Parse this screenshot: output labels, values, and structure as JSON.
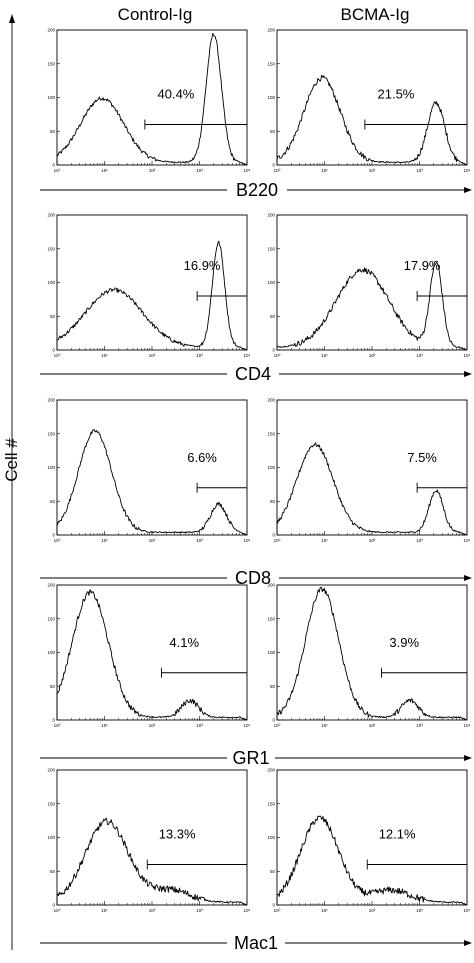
{
  "figure": {
    "y_axis_label": "Cell #",
    "columns": [
      "Control-Ig",
      "BCMA-Ig"
    ]
  },
  "chart_data": [
    {
      "type": "area",
      "marker": "B220",
      "xlim_log10": [
        0,
        4
      ],
      "ylim": [
        0,
        200
      ],
      "x_ticks": [
        "10⁰",
        "10¹",
        "10²",
        "10³",
        "10⁴"
      ],
      "y_ticks": [
        "0",
        "50",
        "100",
        "150",
        "200"
      ],
      "panels": [
        {
          "condition": "Control-Ig",
          "gate_percent": "40.4%",
          "gate_range_log10": [
            1.85,
            4.0
          ],
          "gate_level": 60,
          "peaks": [
            {
              "x": 0.95,
              "h": 95,
              "w": 0.45
            },
            {
              "x": 3.3,
              "h": 190,
              "w": 0.16
            }
          ],
          "noise": 3
        },
        {
          "condition": "BCMA-Ig",
          "gate_percent": "21.5%",
          "gate_range_log10": [
            1.85,
            4.0
          ],
          "gate_level": 60,
          "peaks": [
            {
              "x": 0.95,
              "h": 125,
              "w": 0.38
            },
            {
              "x": 3.35,
              "h": 88,
              "w": 0.18
            }
          ],
          "noise": 4
        }
      ]
    },
    {
      "type": "area",
      "marker": "CD4",
      "xlim_log10": [
        0,
        4
      ],
      "ylim": [
        0,
        200
      ],
      "x_ticks": [
        "10⁰",
        "10¹",
        "10²",
        "10³",
        "10⁴"
      ],
      "y_ticks": [
        "0",
        "50",
        "100",
        "150",
        "200"
      ],
      "panels": [
        {
          "condition": "Control-Ig",
          "gate_percent": "16.9%",
          "gate_range_log10": [
            2.95,
            4.0
          ],
          "gate_level": 80,
          "peaks": [
            {
              "x": 1.2,
              "h": 85,
              "w": 0.6
            },
            {
              "x": 3.4,
              "h": 155,
              "w": 0.13
            }
          ],
          "noise": 3
        },
        {
          "condition": "BCMA-Ig",
          "gate_percent": "17.9%",
          "gate_range_log10": [
            2.95,
            4.0
          ],
          "gate_level": 80,
          "peaks": [
            {
              "x": 1.8,
              "h": 115,
              "w": 0.55
            },
            {
              "x": 3.35,
              "h": 125,
              "w": 0.13
            }
          ],
          "noise": 4
        }
      ]
    },
    {
      "type": "area",
      "marker": "CD8",
      "xlim_log10": [
        0,
        4
      ],
      "ylim": [
        0,
        200
      ],
      "x_ticks": [
        "10⁰",
        "10¹",
        "10²",
        "10³",
        "10⁴"
      ],
      "y_ticks": [
        "0",
        "50",
        "100",
        "150",
        "200"
      ],
      "panels": [
        {
          "condition": "Control-Ig",
          "gate_percent": "6.6%",
          "gate_range_log10": [
            2.95,
            4.0
          ],
          "gate_level": 70,
          "peaks": [
            {
              "x": 0.8,
              "h": 150,
              "w": 0.35
            },
            {
              "x": 3.4,
              "h": 42,
              "w": 0.17
            }
          ],
          "noise": 3
        },
        {
          "condition": "BCMA-Ig",
          "gate_percent": "7.5%",
          "gate_range_log10": [
            2.95,
            4.0
          ],
          "gate_level": 70,
          "peaks": [
            {
              "x": 0.8,
              "h": 130,
              "w": 0.38
            },
            {
              "x": 3.35,
              "h": 62,
              "w": 0.15
            }
          ],
          "noise": 3
        }
      ]
    },
    {
      "type": "area",
      "marker": "GR1",
      "xlim_log10": [
        0,
        4
      ],
      "ylim": [
        0,
        200
      ],
      "x_ticks": [
        "10⁰",
        "10¹",
        "10²",
        "10³",
        "10⁴"
      ],
      "y_ticks": [
        "0",
        "50",
        "100",
        "150",
        "200"
      ],
      "panels": [
        {
          "condition": "Control-Ig",
          "gate_percent": "4.1%",
          "gate_range_log10": [
            2.2,
            4.0
          ],
          "gate_level": 70,
          "peaks": [
            {
              "x": 0.7,
              "h": 185,
              "w": 0.38
            },
            {
              "x": 2.8,
              "h": 25,
              "w": 0.18
            }
          ],
          "noise": 4
        },
        {
          "condition": "BCMA-Ig",
          "gate_percent": "3.9%",
          "gate_range_log10": [
            2.2,
            4.0
          ],
          "gate_level": 70,
          "peaks": [
            {
              "x": 0.95,
              "h": 190,
              "w": 0.35
            },
            {
              "x": 2.8,
              "h": 25,
              "w": 0.18
            }
          ],
          "noise": 4
        }
      ]
    },
    {
      "type": "area",
      "marker": "Mac1",
      "xlim_log10": [
        0,
        4
      ],
      "ylim": [
        0,
        200
      ],
      "x_ticks": [
        "10⁰",
        "10¹",
        "10²",
        "10³",
        "10⁴"
      ],
      "y_ticks": [
        "0",
        "50",
        "100",
        "150",
        "200"
      ],
      "panels": [
        {
          "condition": "Control-Ig",
          "gate_percent": "13.3%",
          "gate_range_log10": [
            1.9,
            4.0
          ],
          "gate_level": 60,
          "peaks": [
            {
              "x": 1.05,
              "h": 120,
              "w": 0.45
            },
            {
              "x": 2.4,
              "h": 18,
              "w": 0.4
            }
          ],
          "noise": 5
        },
        {
          "condition": "BCMA-Ig",
          "gate_percent": "12.1%",
          "gate_range_log10": [
            1.9,
            4.0
          ],
          "gate_level": 60,
          "peaks": [
            {
              "x": 0.9,
              "h": 125,
              "w": 0.4
            },
            {
              "x": 2.4,
              "h": 18,
              "w": 0.4
            }
          ],
          "noise": 5
        }
      ]
    }
  ]
}
